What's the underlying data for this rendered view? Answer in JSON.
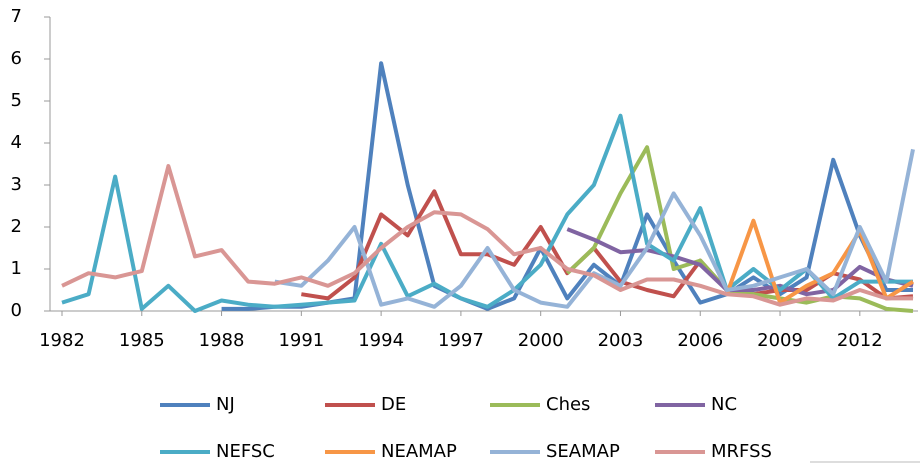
{
  "chart_data": {
    "type": "line",
    "x": [
      1982,
      1983,
      1984,
      1985,
      1986,
      1987,
      1988,
      1989,
      1990,
      1991,
      1992,
      1993,
      1994,
      1995,
      1996,
      1997,
      1998,
      1999,
      2000,
      2001,
      2002,
      2003,
      2004,
      2005,
      2006,
      2007,
      2008,
      2009,
      2010,
      2011,
      2012,
      2013,
      2014
    ],
    "xlim": [
      1982,
      2014
    ],
    "xticks": [
      1982,
      1985,
      1988,
      1991,
      1994,
      1997,
      2000,
      2003,
      2006,
      2009,
      2012
    ],
    "ylim": [
      0,
      7
    ],
    "yticks": [
      0,
      1,
      2,
      3,
      4,
      5,
      6,
      7
    ],
    "grid": false,
    "legend": "bottom",
    "series": [
      {
        "name": "NJ",
        "color": "#4f81bd",
        "values": [
          null,
          null,
          null,
          null,
          null,
          null,
          0.05,
          0.05,
          0.1,
          0.1,
          0.2,
          0.3,
          5.9,
          3.0,
          0.6,
          0.3,
          0.05,
          0.3,
          1.5,
          0.3,
          1.1,
          0.6,
          2.3,
          1.2,
          0.2,
          0.4,
          0.8,
          0.4,
          0.8,
          3.6,
          1.8,
          0.5,
          0.5
        ]
      },
      {
        "name": "DE",
        "color": "#c0504d",
        "values": [
          null,
          null,
          null,
          null,
          null,
          null,
          null,
          null,
          null,
          0.4,
          0.3,
          0.8,
          2.3,
          1.8,
          2.85,
          1.35,
          1.35,
          1.1,
          2.0,
          0.9,
          1.5,
          0.7,
          0.5,
          0.35,
          1.2,
          0.5,
          0.4,
          0.5,
          0.5,
          0.9,
          0.75,
          0.3,
          0.35
        ]
      },
      {
        "name": "Ches",
        "color": "#9bbb59",
        "values": [
          null,
          null,
          null,
          null,
          null,
          null,
          null,
          null,
          null,
          null,
          null,
          null,
          null,
          null,
          null,
          null,
          null,
          null,
          null,
          0.9,
          1.5,
          2.8,
          3.9,
          1.0,
          1.2,
          0.5,
          0.4,
          0.3,
          0.2,
          0.35,
          0.3,
          0.05,
          0.0
        ]
      },
      {
        "name": "NC",
        "color": "#8064a2",
        "values": [
          null,
          null,
          null,
          null,
          null,
          null,
          null,
          null,
          null,
          null,
          null,
          null,
          null,
          null,
          null,
          null,
          null,
          null,
          null,
          1.95,
          1.7,
          1.4,
          1.45,
          1.3,
          1.1,
          0.5,
          0.5,
          0.6,
          0.4,
          0.5,
          1.05,
          0.75,
          0.6
        ]
      },
      {
        "name": "NEFSC",
        "color": "#4bacc6",
        "values": [
          0.2,
          0.4,
          3.2,
          0.05,
          0.6,
          0.0,
          0.25,
          0.15,
          0.1,
          0.15,
          0.2,
          0.25,
          1.6,
          0.35,
          0.65,
          0.3,
          0.1,
          0.5,
          1.1,
          2.3,
          3.0,
          4.65,
          1.6,
          1.2,
          2.45,
          0.5,
          1.0,
          0.5,
          1.0,
          0.3,
          0.7,
          0.7,
          0.7
        ]
      },
      {
        "name": "NEAMAP",
        "color": "#f79646",
        "values": [
          null,
          null,
          null,
          null,
          null,
          null,
          null,
          null,
          null,
          null,
          null,
          null,
          null,
          null,
          null,
          null,
          null,
          null,
          null,
          null,
          null,
          null,
          null,
          null,
          null,
          0.4,
          2.15,
          0.2,
          0.6,
          0.9,
          1.9,
          0.3,
          0.7
        ]
      },
      {
        "name": "SEAMAP",
        "color": "#95b3d7",
        "values": [
          null,
          null,
          null,
          null,
          null,
          null,
          null,
          null,
          0.7,
          0.6,
          1.2,
          2.0,
          0.15,
          0.3,
          0.1,
          0.6,
          1.5,
          0.5,
          0.2,
          0.1,
          0.9,
          0.6,
          1.5,
          2.8,
          1.8,
          0.5,
          0.6,
          0.8,
          1.0,
          0.4,
          2.0,
          0.7,
          3.85
        ]
      },
      {
        "name": "MRFSS",
        "color": "#d99694",
        "values": [
          0.6,
          0.9,
          0.8,
          0.95,
          3.45,
          1.3,
          1.45,
          0.7,
          0.65,
          0.8,
          0.6,
          0.9,
          1.5,
          2.0,
          2.35,
          2.3,
          1.95,
          1.35,
          1.5,
          1.0,
          0.85,
          0.5,
          0.75,
          0.75,
          0.6,
          0.4,
          0.35,
          0.15,
          0.3,
          0.25,
          0.5,
          0.3,
          0.3
        ]
      }
    ]
  }
}
